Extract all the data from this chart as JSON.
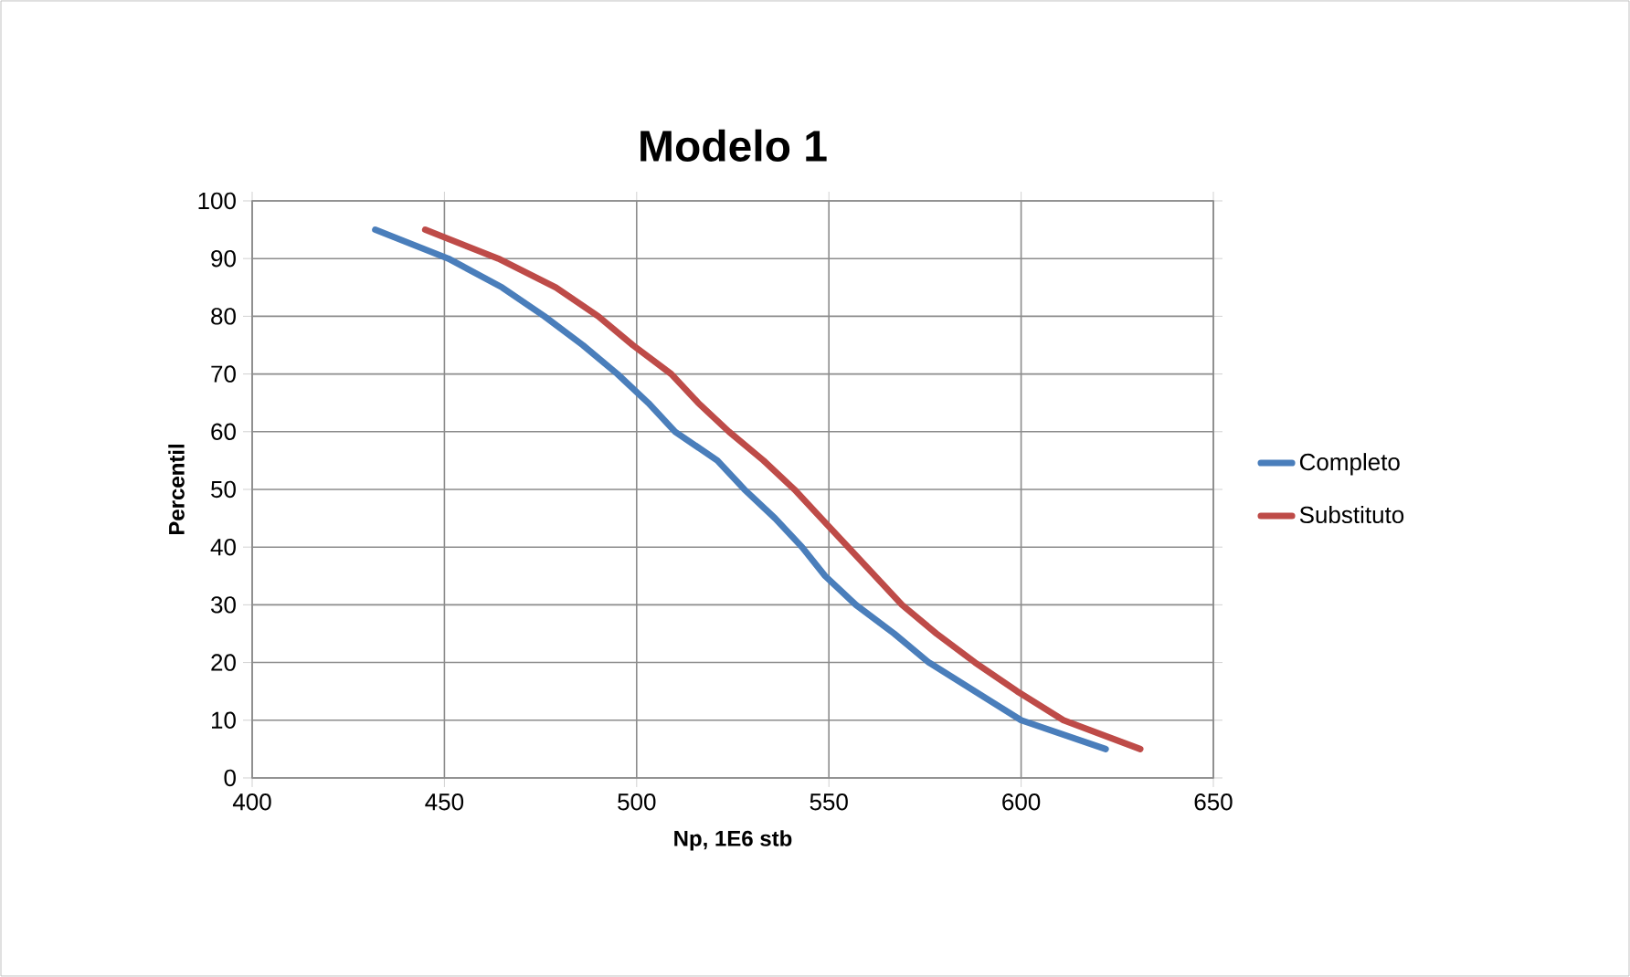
{
  "chart_data": {
    "type": "line",
    "title": "Modelo 1",
    "xlabel": "Np, 1E6 stb",
    "ylabel": "Percentil",
    "xlim": [
      400,
      650
    ],
    "xticks": [
      400,
      450,
      500,
      550,
      600,
      650
    ],
    "ylim": [
      0,
      100
    ],
    "yticks": [
      0,
      10,
      20,
      30,
      40,
      50,
      60,
      70,
      80,
      90,
      100
    ],
    "grid": true,
    "legend": "right",
    "marker": "none",
    "line_style": "solid",
    "series": [
      {
        "name": "Completo",
        "color": "#4a7ebb",
        "x": [
          432,
          451,
          465,
          476,
          486,
          495,
          503,
          510,
          521,
          528,
          536,
          543,
          549,
          557,
          567,
          576,
          588,
          600,
          622
        ],
        "values": [
          95,
          90,
          85,
          80,
          75,
          70,
          65,
          60,
          55,
          50,
          45,
          40,
          35,
          30,
          25,
          20,
          15,
          10,
          5
        ]
      },
      {
        "name": "Substituto",
        "color": "#be4b48",
        "x": [
          445,
          464,
          479,
          490,
          499,
          509,
          516,
          524,
          533,
          541,
          548,
          555,
          562,
          569,
          578,
          588,
          599,
          611,
          631
        ],
        "values": [
          95,
          90,
          85,
          80,
          75,
          70,
          65,
          60,
          55,
          50,
          45,
          40,
          35,
          30,
          25,
          20,
          15,
          10,
          5
        ]
      }
    ]
  }
}
